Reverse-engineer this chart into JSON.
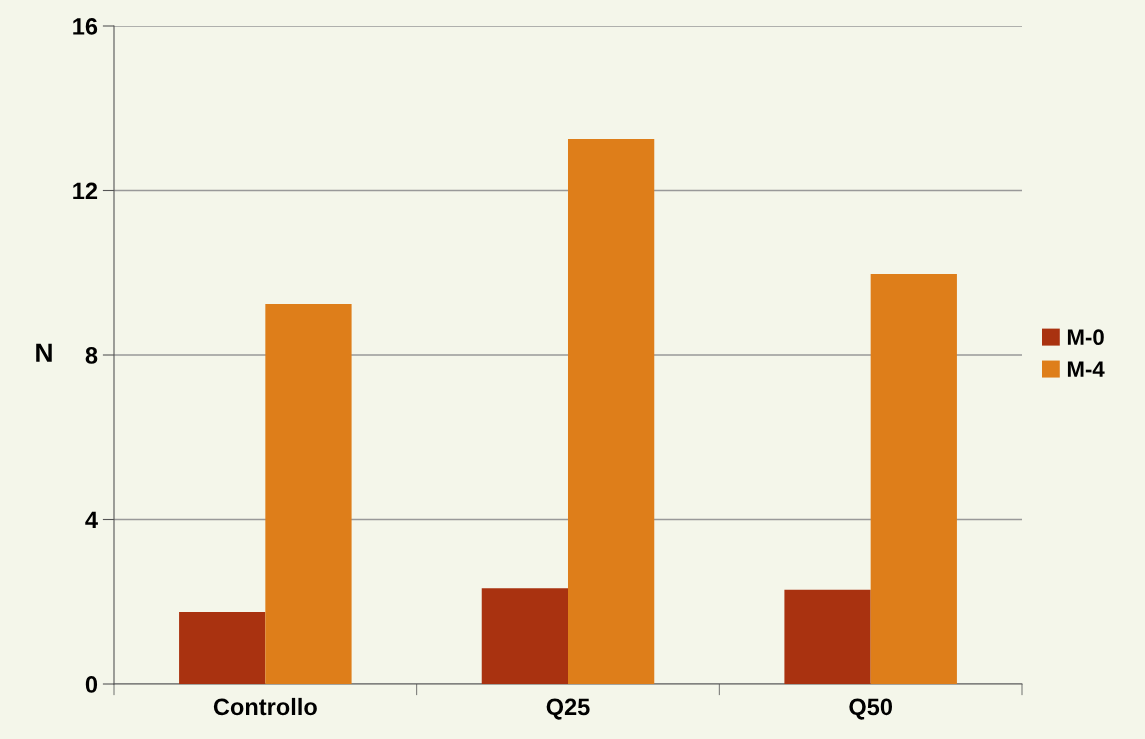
{
  "chart_data": {
    "type": "bar",
    "ylabel": "N",
    "categories": [
      "Controllo",
      "Q25",
      "Q50"
    ],
    "series": [
      {
        "name": "M-0",
        "color": "#a93210",
        "values": [
          1.75,
          2.33,
          2.29
        ]
      },
      {
        "name": "M-4",
        "color": "#de7e1a",
        "values": [
          9.24,
          13.25,
          9.97
        ]
      }
    ],
    "ylim": [
      0,
      16
    ],
    "yticks": [
      0,
      4,
      8,
      12,
      16
    ],
    "grid": "y",
    "legend": "right"
  }
}
